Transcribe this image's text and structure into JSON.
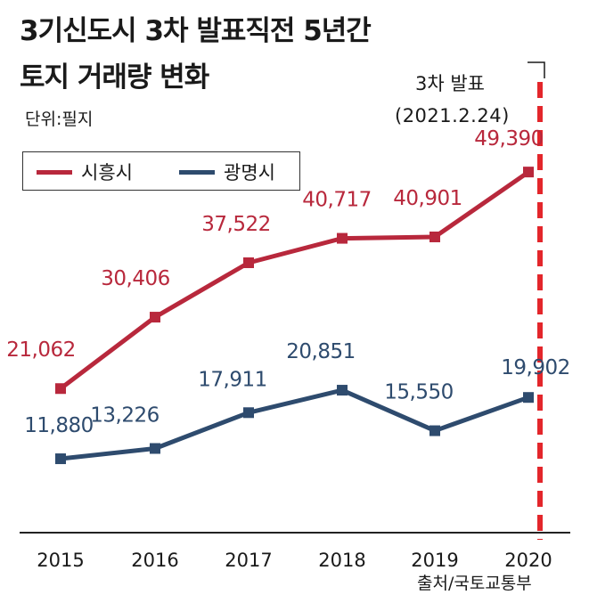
{
  "colors": {
    "siheung": "#b8283c",
    "gwangmyeong": "#2e4b6e",
    "announce_line": "#e3262b"
  },
  "chart_data": {
    "type": "line",
    "title": "3기신도시 3차 발표직전 5년간",
    "subtitle": "토지 거래량 변화",
    "unit": "단위:필지",
    "categories": [
      "2015",
      "2016",
      "2017",
      "2018",
      "2019",
      "2020"
    ],
    "series": [
      {
        "name": "시흥시",
        "values": [
          21062,
          30406,
          37522,
          40717,
          40901,
          49390
        ],
        "labels": [
          "21,062",
          "30,406",
          "37,522",
          "40,717",
          "40,901",
          "49,390"
        ]
      },
      {
        "name": "광명시",
        "values": [
          11880,
          13226,
          17911,
          20851,
          15550,
          19902
        ],
        "labels": [
          "11,880",
          "13,226",
          "17,911",
          "20,851",
          "15,550",
          "19,902"
        ]
      }
    ],
    "annotation": {
      "label": "3차 발표",
      "date": "(2021.2.24)",
      "position": "right"
    },
    "source": "출처/국토교통부",
    "xlabel": "",
    "ylabel": "",
    "ylim": [
      0,
      55000
    ]
  }
}
